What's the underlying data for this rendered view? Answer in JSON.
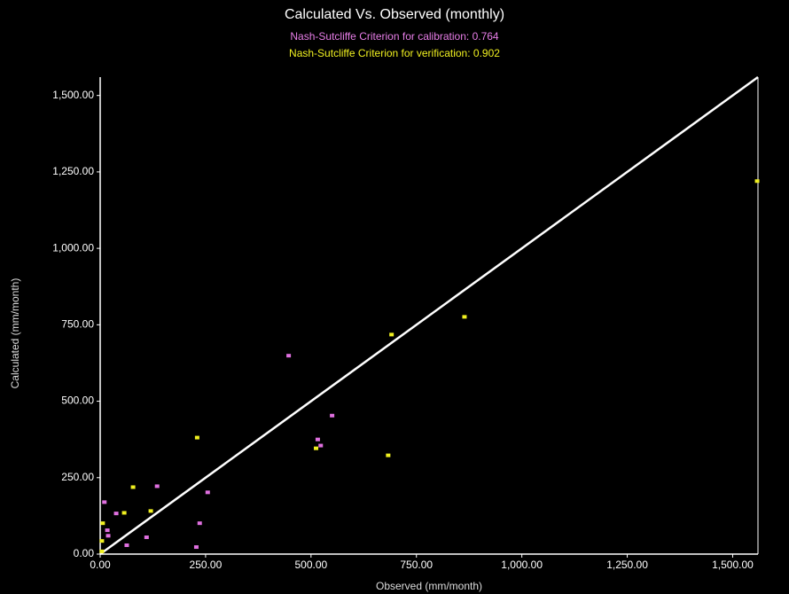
{
  "chart_data": {
    "type": "scatter",
    "title": "Calculated  Vs. Observed (monthly)",
    "subtitles": [
      {
        "text": "Nash-Sutcliffe Criterion for calibration: 0.764",
        "color": "#e87ee8"
      },
      {
        "text": "Nash-Sutcliffe Criterion for verification: 0.902",
        "color": "#f0f020"
      }
    ],
    "x_label": "Observed (mm/month)",
    "y_label": "Calculated (mm/month)",
    "xlim": [
      0,
      1560
    ],
    "ylim": [
      0,
      1560
    ],
    "xticks": [
      {
        "value": 0,
        "label": "0.00"
      },
      {
        "value": 250,
        "label": "250.00"
      },
      {
        "value": 500,
        "label": "500.00"
      },
      {
        "value": 750,
        "label": "750.00"
      },
      {
        "value": 1000,
        "label": "1,000.00"
      },
      {
        "value": 1250,
        "label": "1,250.00"
      },
      {
        "value": 1500,
        "label": "1,500.00"
      }
    ],
    "yticks": [
      {
        "value": 0,
        "label": "0.00"
      },
      {
        "value": 250,
        "label": "250.00"
      },
      {
        "value": 500,
        "label": "500.00"
      },
      {
        "value": 750,
        "label": "750.00"
      },
      {
        "value": 1000,
        "label": "1,000.00"
      },
      {
        "value": 1250,
        "label": "1,250.00"
      },
      {
        "value": 1500,
        "label": "1,500.00"
      }
    ],
    "series": [
      {
        "color": "#e070e0",
        "x": [
          10,
          17,
          19,
          38,
          63,
          110,
          135,
          228,
          236,
          255,
          447,
          516,
          523,
          550
        ],
        "values": [
          170,
          78,
          60,
          133,
          29,
          55,
          222,
          23,
          101,
          202,
          649,
          375,
          355,
          453
        ]
      },
      {
        "color": "#f0f020",
        "x": [
          4,
          4,
          6,
          57,
          78,
          120,
          230,
          512,
          683,
          691,
          864,
          1558
        ],
        "values": [
          9,
          43,
          101,
          135,
          219,
          141,
          381,
          346,
          323,
          718,
          776,
          1220
        ]
      }
    ]
  }
}
